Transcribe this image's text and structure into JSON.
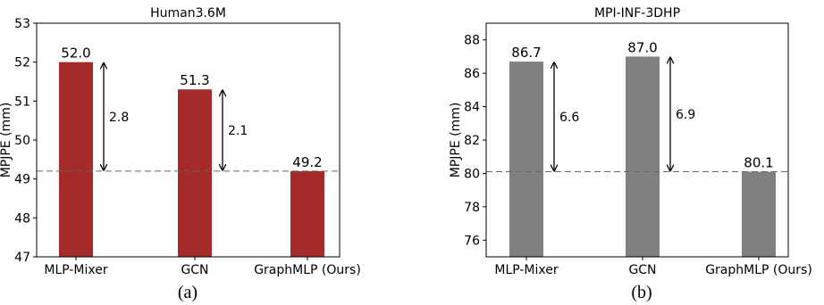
{
  "chart_data": [
    {
      "type": "bar",
      "title": "Human3.6M",
      "ylabel": "MPJPE (mm)",
      "xlabel": "",
      "categories": [
        "MLP-Mixer",
        "GCN",
        "GraphMLP (Ours)"
      ],
      "values": [
        52.0,
        51.3,
        49.2
      ],
      "value_labels": [
        "52.0",
        "51.3",
        "49.2"
      ],
      "ylim": [
        47,
        53
      ],
      "yticks": [
        47,
        48,
        49,
        50,
        51,
        52,
        53
      ],
      "bar_color": "#a52a2a",
      "reference_line": 49.2,
      "differences": [
        {
          "category": "MLP-Mixer",
          "label": "2.8"
        },
        {
          "category": "GCN",
          "label": "2.1"
        }
      ],
      "caption": "(a)",
      "grid": false
    },
    {
      "type": "bar",
      "title": "MPI-INF-3DHP",
      "ylabel": "MPJPE (mm)",
      "xlabel": "",
      "categories": [
        "MLP-Mixer",
        "GCN",
        "GraphMLP (Ours)"
      ],
      "values": [
        86.7,
        87.0,
        80.1
      ],
      "value_labels": [
        "86.7",
        "87.0",
        "80.1"
      ],
      "ylim": [
        75,
        89
      ],
      "yticks": [
        76,
        78,
        80,
        82,
        84,
        86,
        88
      ],
      "bar_color": "#808080",
      "reference_line": 80.1,
      "differences": [
        {
          "category": "MLP-Mixer",
          "label": "6.6"
        },
        {
          "category": "GCN",
          "label": "6.9"
        }
      ],
      "caption": "(b)",
      "grid": false
    }
  ]
}
